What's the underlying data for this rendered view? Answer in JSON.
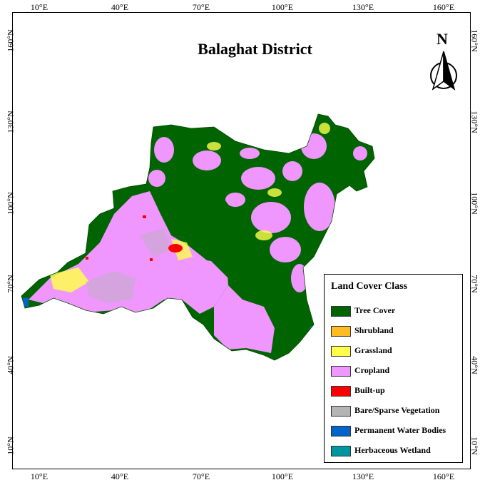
{
  "map": {
    "title": "Balaghat District",
    "north_label": "N",
    "x_ticks": [
      "10°E",
      "40°E",
      "70°E",
      "100°E",
      "130°E",
      "160°E"
    ],
    "y_ticks": [
      "160°N",
      "130°N",
      "100°N",
      "70°N",
      "40°N",
      "10°N"
    ]
  },
  "legend": {
    "title": "Land Cover Class",
    "items": [
      {
        "label": "Tree Cover",
        "color": "#006400"
      },
      {
        "label": "Shrubland",
        "color": "#ffbb22"
      },
      {
        "label": "Grassland",
        "color": "#ffff4c"
      },
      {
        "label": "Cropland",
        "color": "#f096ff"
      },
      {
        "label": "Built-up",
        "color": "#fa0000"
      },
      {
        "label": "Bare/Sparse Vegetation",
        "color": "#b4b4b4"
      },
      {
        "label": "Permanent Water Bodies",
        "color": "#0064c8"
      },
      {
        "label": "Herbaceous Wetland",
        "color": "#0096a0"
      }
    ]
  }
}
